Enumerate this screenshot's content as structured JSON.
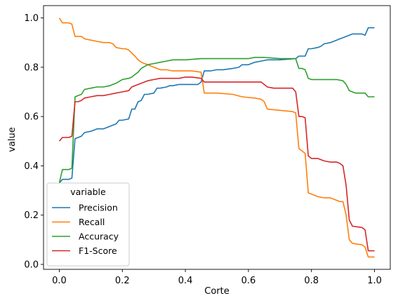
{
  "chart_data": {
    "type": "line",
    "xlabel": "Corte",
    "ylabel": "value",
    "xlim": [
      -0.05,
      1.05
    ],
    "ylim": [
      -0.02,
      1.05
    ],
    "xticks": [
      0.0,
      0.2,
      0.4,
      0.6,
      0.8,
      1.0
    ],
    "xtick_labels": [
      "0.0",
      "0.2",
      "0.4",
      "0.6",
      "0.8",
      "1.0"
    ],
    "yticks": [
      0.0,
      0.2,
      0.4,
      0.6,
      0.8,
      1.0
    ],
    "ytick_labels": [
      "0.0",
      "0.2",
      "0.4",
      "0.6",
      "0.8",
      "1.0"
    ],
    "grid": false,
    "legend": {
      "title": "variable",
      "placement": "lower-left"
    },
    "series": [
      {
        "name": "Precision",
        "color": "#1f77b4",
        "x": [
          0,
          0.01,
          0.02,
          0.03,
          0.04,
          0.05,
          0.06,
          0.07,
          0.08,
          0.1,
          0.12,
          0.14,
          0.16,
          0.17,
          0.18,
          0.19,
          0.2,
          0.22,
          0.23,
          0.24,
          0.25,
          0.26,
          0.27,
          0.28,
          0.3,
          0.31,
          0.32,
          0.34,
          0.35,
          0.36,
          0.38,
          0.4,
          0.42,
          0.44,
          0.45,
          0.46,
          0.48,
          0.5,
          0.52,
          0.55,
          0.57,
          0.58,
          0.6,
          0.62,
          0.64,
          0.66,
          0.7,
          0.75,
          0.76,
          0.78,
          0.79,
          0.8,
          0.82,
          0.83,
          0.84,
          0.86,
          0.88,
          0.89,
          0.9,
          0.92,
          0.93,
          0.96,
          0.97,
          0.98,
          1.0
        ],
        "values": [
          0.33,
          0.345,
          0.345,
          0.345,
          0.35,
          0.51,
          0.515,
          0.52,
          0.535,
          0.54,
          0.55,
          0.55,
          0.56,
          0.565,
          0.57,
          0.585,
          0.585,
          0.59,
          0.63,
          0.63,
          0.66,
          0.665,
          0.69,
          0.69,
          0.695,
          0.715,
          0.715,
          0.72,
          0.725,
          0.725,
          0.73,
          0.73,
          0.73,
          0.73,
          0.74,
          0.785,
          0.785,
          0.79,
          0.79,
          0.795,
          0.8,
          0.81,
          0.81,
          0.82,
          0.825,
          0.83,
          0.83,
          0.835,
          0.845,
          0.845,
          0.875,
          0.875,
          0.88,
          0.885,
          0.895,
          0.9,
          0.91,
          0.915,
          0.92,
          0.93,
          0.935,
          0.935,
          0.93,
          0.96,
          0.96
        ]
      },
      {
        "name": "Recall",
        "color": "#ff7f0e",
        "x": [
          0,
          0.01,
          0.02,
          0.03,
          0.04,
          0.05,
          0.07,
          0.08,
          0.1,
          0.12,
          0.14,
          0.16,
          0.17,
          0.18,
          0.2,
          0.21,
          0.22,
          0.24,
          0.25,
          0.26,
          0.28,
          0.3,
          0.32,
          0.34,
          0.36,
          0.38,
          0.4,
          0.42,
          0.45,
          0.46,
          0.5,
          0.55,
          0.58,
          0.62,
          0.64,
          0.65,
          0.66,
          0.7,
          0.74,
          0.75,
          0.76,
          0.77,
          0.78,
          0.79,
          0.8,
          0.82,
          0.84,
          0.86,
          0.88,
          0.89,
          0.9,
          0.91,
          0.92,
          0.93,
          0.96,
          0.97,
          0.98,
          1.0
        ],
        "values": [
          1.0,
          0.98,
          0.98,
          0.98,
          0.975,
          0.925,
          0.925,
          0.915,
          0.91,
          0.905,
          0.9,
          0.9,
          0.895,
          0.88,
          0.875,
          0.875,
          0.87,
          0.845,
          0.83,
          0.82,
          0.81,
          0.8,
          0.79,
          0.79,
          0.785,
          0.785,
          0.785,
          0.785,
          0.78,
          0.695,
          0.695,
          0.69,
          0.68,
          0.675,
          0.67,
          0.66,
          0.63,
          0.625,
          0.62,
          0.615,
          0.47,
          0.46,
          0.45,
          0.29,
          0.285,
          0.275,
          0.27,
          0.27,
          0.26,
          0.255,
          0.255,
          0.2,
          0.1,
          0.085,
          0.08,
          0.07,
          0.03,
          0.03
        ]
      },
      {
        "name": "Accuracy",
        "color": "#2ca02c",
        "x": [
          0,
          0.01,
          0.02,
          0.03,
          0.04,
          0.05,
          0.06,
          0.07,
          0.08,
          0.1,
          0.12,
          0.14,
          0.16,
          0.17,
          0.18,
          0.2,
          0.22,
          0.23,
          0.25,
          0.26,
          0.28,
          0.3,
          0.32,
          0.34,
          0.36,
          0.4,
          0.45,
          0.5,
          0.55,
          0.6,
          0.62,
          0.65,
          0.7,
          0.74,
          0.75,
          0.76,
          0.77,
          0.78,
          0.79,
          0.8,
          0.84,
          0.88,
          0.9,
          0.91,
          0.92,
          0.94,
          0.96,
          0.97,
          0.98,
          1.0
        ],
        "values": [
          0.33,
          0.385,
          0.385,
          0.385,
          0.39,
          0.68,
          0.685,
          0.69,
          0.71,
          0.715,
          0.72,
          0.72,
          0.725,
          0.73,
          0.735,
          0.75,
          0.755,
          0.76,
          0.78,
          0.795,
          0.81,
          0.815,
          0.82,
          0.825,
          0.83,
          0.83,
          0.835,
          0.835,
          0.835,
          0.835,
          0.84,
          0.84,
          0.835,
          0.835,
          0.835,
          0.795,
          0.795,
          0.79,
          0.755,
          0.75,
          0.75,
          0.75,
          0.745,
          0.73,
          0.705,
          0.695,
          0.695,
          0.695,
          0.68,
          0.68
        ]
      },
      {
        "name": "F1-Score",
        "color": "#d62728",
        "x": [
          0,
          0.01,
          0.02,
          0.03,
          0.04,
          0.05,
          0.06,
          0.07,
          0.08,
          0.1,
          0.12,
          0.14,
          0.16,
          0.18,
          0.2,
          0.22,
          0.23,
          0.24,
          0.26,
          0.28,
          0.3,
          0.32,
          0.35,
          0.38,
          0.4,
          0.42,
          0.45,
          0.46,
          0.5,
          0.55,
          0.6,
          0.64,
          0.66,
          0.68,
          0.7,
          0.74,
          0.75,
          0.76,
          0.77,
          0.78,
          0.79,
          0.8,
          0.82,
          0.84,
          0.86,
          0.88,
          0.89,
          0.9,
          0.91,
          0.92,
          0.93,
          0.96,
          0.97,
          0.98,
          1.0
        ],
        "values": [
          0.5,
          0.515,
          0.515,
          0.515,
          0.52,
          0.66,
          0.66,
          0.665,
          0.675,
          0.68,
          0.685,
          0.685,
          0.69,
          0.695,
          0.7,
          0.705,
          0.72,
          0.725,
          0.735,
          0.745,
          0.75,
          0.755,
          0.755,
          0.755,
          0.76,
          0.76,
          0.755,
          0.74,
          0.74,
          0.74,
          0.74,
          0.74,
          0.72,
          0.715,
          0.715,
          0.715,
          0.7,
          0.6,
          0.6,
          0.595,
          0.44,
          0.43,
          0.43,
          0.42,
          0.415,
          0.415,
          0.41,
          0.4,
          0.32,
          0.18,
          0.155,
          0.15,
          0.14,
          0.055,
          0.055
        ]
      }
    ]
  }
}
